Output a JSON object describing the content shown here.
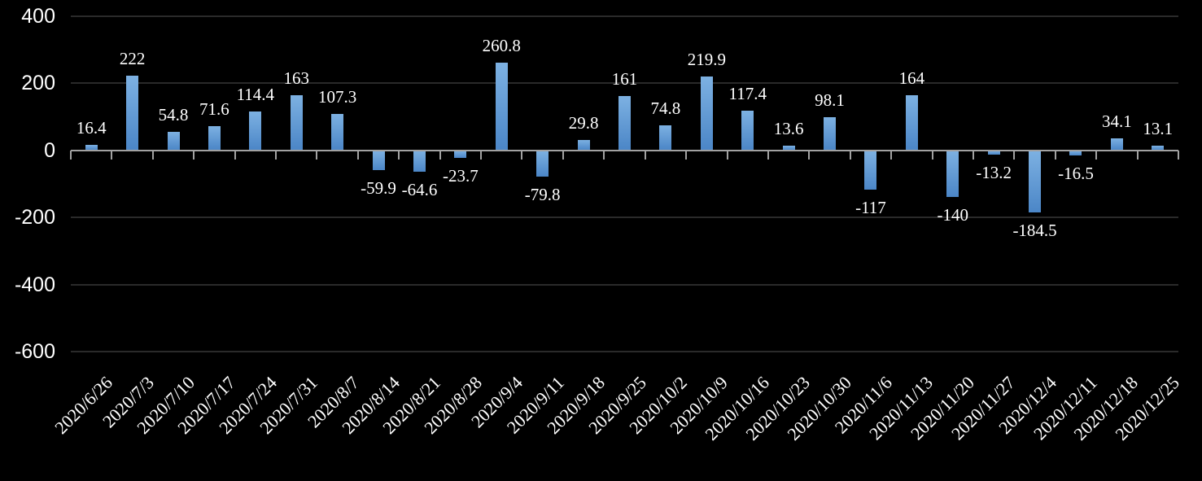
{
  "chart_data": {
    "type": "bar",
    "title": "",
    "categories": [
      "2020/6/26",
      "2020/7/3",
      "2020/7/10",
      "2020/7/17",
      "2020/7/24",
      "2020/7/31",
      "2020/8/7",
      "2020/8/14",
      "2020/8/21",
      "2020/8/28",
      "2020/9/4",
      "2020/9/11",
      "2020/9/18",
      "2020/9/25",
      "2020/10/2",
      "2020/10/9",
      "2020/10/16",
      "2020/10/23",
      "2020/10/30",
      "2020/11/6",
      "2020/11/13",
      "2020/11/20",
      "2020/11/27",
      "2020/12/4",
      "2020/12/11",
      "2020/12/18",
      "2020/12/25"
    ],
    "values": [
      16.4,
      222,
      54.8,
      71.6,
      114.4,
      163,
      107.3,
      -59.9,
      -64.6,
      -23.7,
      260.8,
      -79.8,
      29.8,
      161,
      74.8,
      219.9,
      117.4,
      13.6,
      98.1,
      -117,
      164,
      -140,
      -13.2,
      -184.5,
      -16.5,
      34.1,
      13.1
    ],
    "xlabel": "",
    "ylabel": "",
    "y_ticks": [
      400,
      200,
      0,
      -200,
      -400,
      -600
    ],
    "ylim": [
      -600,
      400
    ],
    "grid": true,
    "legend": false,
    "x_label_rotation_deg": 45,
    "data_labels_shown": true,
    "colors": {
      "background": "#000000",
      "bar_gradient_top": "#7db1e2",
      "bar_gradient_bottom": "#4b86c7",
      "gridline": "#2a2a2a",
      "axis_line": "#a2a2a2",
      "tick_mark": "#a2a2a2",
      "label_text": "#ffffff"
    }
  }
}
